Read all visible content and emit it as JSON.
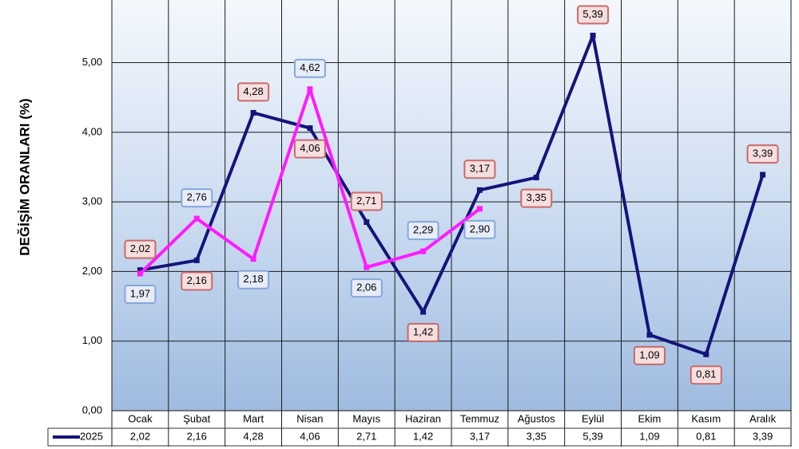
{
  "chart_data": {
    "type": "line",
    "y_axis_label": "DEĞİŞİM ORANLARI (%)",
    "categories": [
      "Ocak",
      "Şubat",
      "Mart",
      "Nisan",
      "Mayıs",
      "Haziran",
      "Temmuz",
      "Ağustos",
      "Eylül",
      "Ekim",
      "Kasım",
      "Aralık"
    ],
    "series": [
      {
        "name": "2025",
        "color": "#14147a",
        "values": [
          2.02,
          2.16,
          4.28,
          4.06,
          2.71,
          1.42,
          3.17,
          3.35,
          5.39,
          1.09,
          0.81,
          3.39
        ],
        "value_labels": [
          "2,02",
          "2,16",
          "4,28",
          "4,06",
          "2,71",
          "1,42",
          "3,17",
          "3,35",
          "5,39",
          "1,09",
          "0,81",
          "3,39"
        ]
      },
      {
        "color": "#ff1aff",
        "values": [
          1.97,
          2.76,
          2.18,
          4.62,
          2.06,
          2.29,
          2.9,
          null,
          null,
          null,
          null,
          null
        ],
        "value_labels": [
          "1,97",
          "2,76",
          "2,18",
          "4,62",
          "2,06",
          "2,29",
          "2,90",
          null,
          null,
          null,
          null,
          null
        ]
      }
    ],
    "ylim": [
      0,
      5.9
    ],
    "yticks": [
      {
        "value": 0,
        "label": "0,00"
      },
      {
        "value": 1,
        "label": "1,00"
      },
      {
        "value": 2,
        "label": "2,00"
      },
      {
        "value": 3,
        "label": "3,00"
      },
      {
        "value": 4,
        "label": "4,00"
      },
      {
        "value": 5,
        "label": "5,00"
      }
    ],
    "grid": true
  }
}
